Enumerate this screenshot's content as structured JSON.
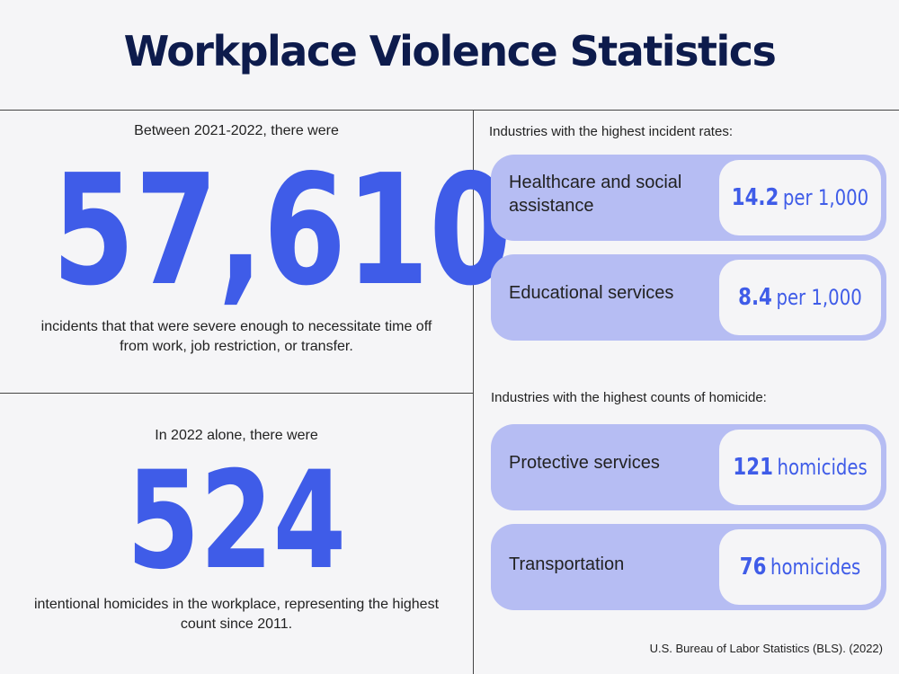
{
  "title": "Workplace Violence Statistics",
  "left_top": {
    "intro": "Between 2021-2022, there were",
    "number": "57,610",
    "description_line1": "incidents that that were severe enough to necessitate time off",
    "description_line2": "from work, job restriction, or transfer."
  },
  "left_bottom": {
    "intro": "In 2022 alone, there were",
    "number": "524",
    "description_line1": "intentional homicides in the workplace, representing the highest",
    "description_line2": "count since 2011."
  },
  "incident_rates": {
    "heading": "Industries with the highest incident rates:",
    "items": [
      {
        "label_line1": "Healthcare and social",
        "label_line2": "assistance",
        "value": "14.2",
        "unit": "per 1,000"
      },
      {
        "label_line1": "Educational services",
        "label_line2": "",
        "value": "8.4",
        "unit": "per 1,000"
      }
    ]
  },
  "homicide_counts": {
    "heading": "Industries with the highest counts of homicide:",
    "items": [
      {
        "label_line1": "Protective services",
        "label_line2": "",
        "value": "121",
        "unit": "homicides"
      },
      {
        "label_line1": "Transportation",
        "label_line2": "",
        "value": "76",
        "unit": "homicides"
      }
    ]
  },
  "source": "U.S. Bureau of Labor Statistics (BLS). (2022)",
  "colors": {
    "accent": "#3f5ce8",
    "title": "#0d1b4c",
    "card": "#b6bdf3",
    "background": "#f5f5f7"
  }
}
